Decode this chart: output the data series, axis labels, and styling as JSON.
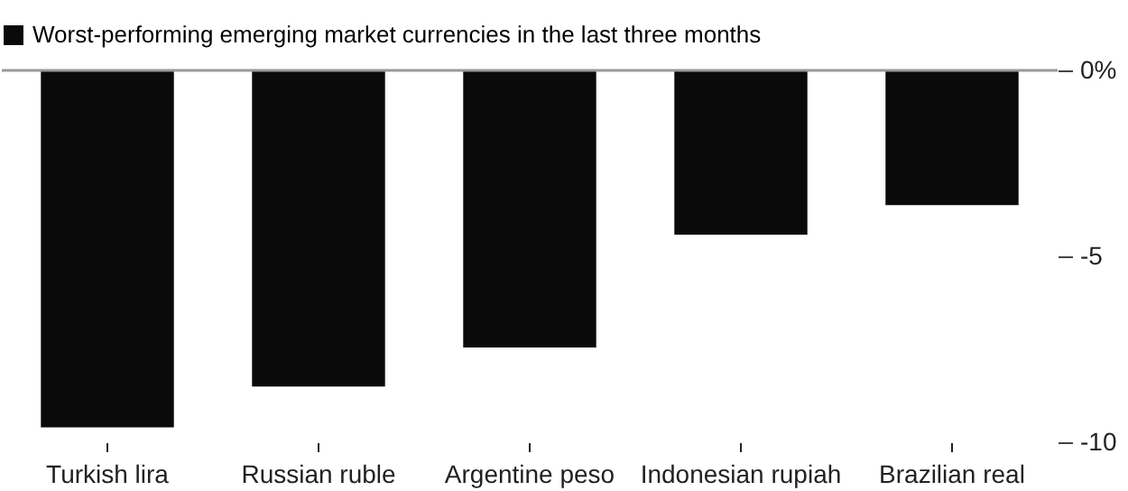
{
  "chart_data": {
    "type": "bar",
    "categories": [
      "Turkish lira",
      "Russian ruble",
      "Argentine peso",
      "Indonesian rupiah",
      "Brazilian real"
    ],
    "series": [
      {
        "name": "Worst-performing emerging market currencies in the last three months",
        "color": "#0a0a0a",
        "values": [
          -9.6,
          -8.5,
          -7.45,
          -4.42,
          -3.62
        ]
      }
    ],
    "ylim": [
      -10,
      0
    ],
    "yticks": [
      {
        "value": 0,
        "label": "0%"
      },
      -5,
      -10
    ],
    "ref_lines": [
      {
        "axis": "y",
        "value": 0,
        "color": "#999999"
      }
    ],
    "legend": "top left",
    "grid": false
  }
}
